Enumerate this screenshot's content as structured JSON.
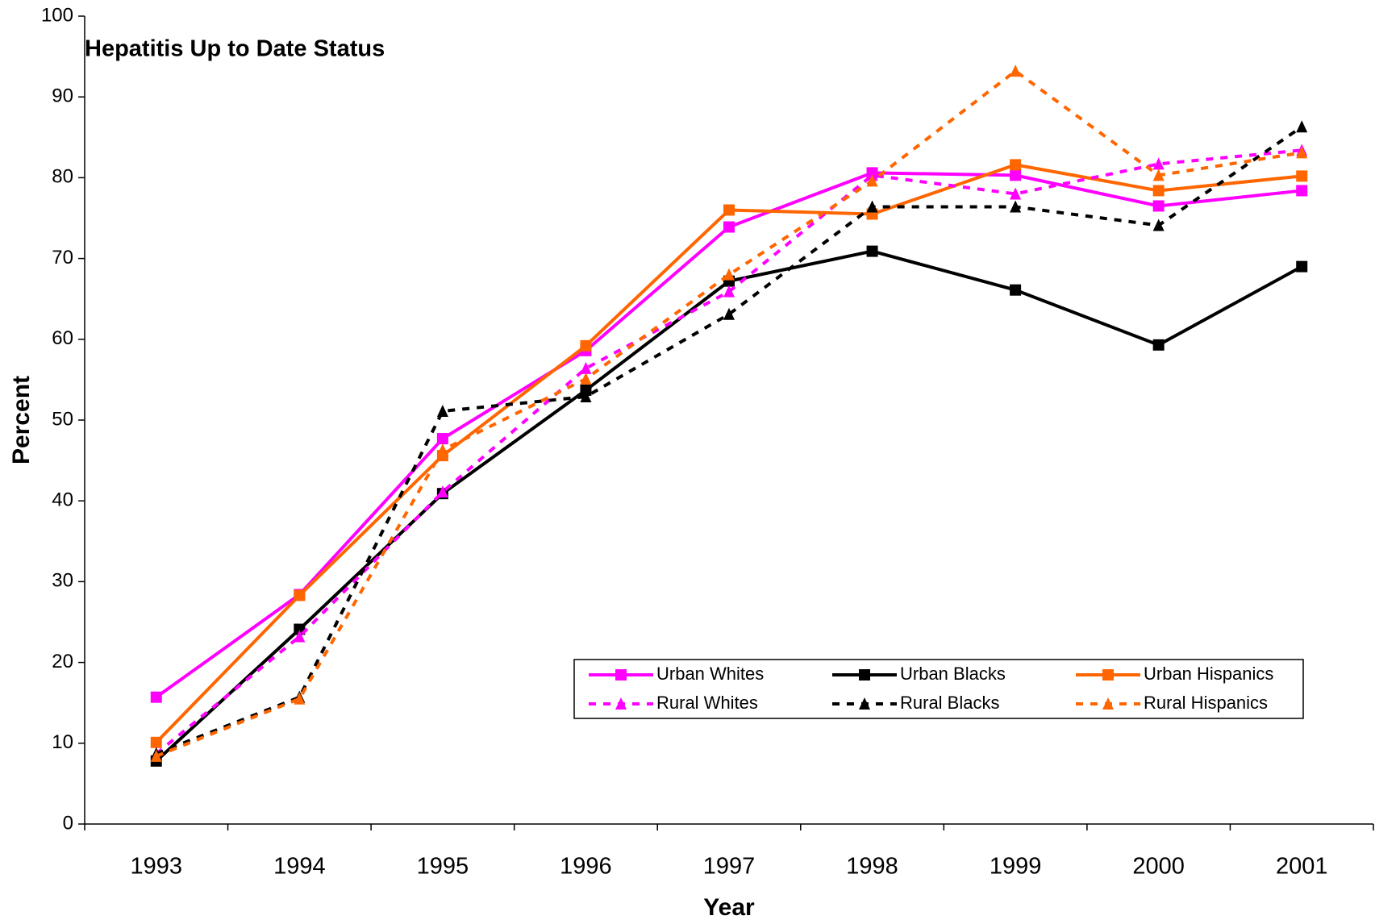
{
  "chart_data": {
    "type": "line",
    "title": "Hepatitis Up to Date Status",
    "x_label": "Year",
    "y_label": "Percent",
    "categories": [
      "1993",
      "1994",
      "1995",
      "1996",
      "1997",
      "1998",
      "1999",
      "2000",
      "2001"
    ],
    "ylim": [
      0,
      100
    ],
    "yticks": [
      0,
      10,
      20,
      30,
      40,
      50,
      60,
      70,
      80,
      90,
      100
    ],
    "grid": false,
    "series": [
      {
        "name": "Urban Whites",
        "color": "#ff00ff",
        "line_style": "solid",
        "marker": "square",
        "values": [
          15.7,
          28.4,
          47.7,
          58.6,
          73.9,
          80.6,
          80.3,
          76.5,
          78.4
        ]
      },
      {
        "name": "Urban Blacks",
        "color": "#000000",
        "line_style": "solid",
        "marker": "square",
        "values": [
          7.8,
          24.1,
          40.9,
          53.7,
          67.2,
          70.9,
          66.1,
          59.3,
          69.0
        ]
      },
      {
        "name": "Urban Hispanics",
        "color": "#ff6600",
        "line_style": "solid",
        "marker": "square",
        "values": [
          10.1,
          28.3,
          45.6,
          59.2,
          76.0,
          75.5,
          81.6,
          78.4,
          80.2
        ]
      },
      {
        "name": "Rural Whites",
        "color": "#ff00ff",
        "line_style": "dashed",
        "marker": "triangle",
        "values": [
          8.7,
          23.2,
          41.1,
          56.4,
          65.9,
          80.3,
          78.0,
          81.7,
          83.4
        ]
      },
      {
        "name": "Rural Blacks",
        "color": "#000000",
        "line_style": "dashed",
        "marker": "triangle",
        "values": [
          8.7,
          15.7,
          51.1,
          52.9,
          63.1,
          76.4,
          76.4,
          74.1,
          86.3
        ]
      },
      {
        "name": "Rural Hispanics",
        "color": "#ff6600",
        "line_style": "dashed",
        "marker": "triangle",
        "values": [
          8.4,
          15.5,
          46.3,
          55.1,
          68.0,
          79.6,
          93.2,
          80.3,
          83.1
        ]
      }
    ]
  }
}
